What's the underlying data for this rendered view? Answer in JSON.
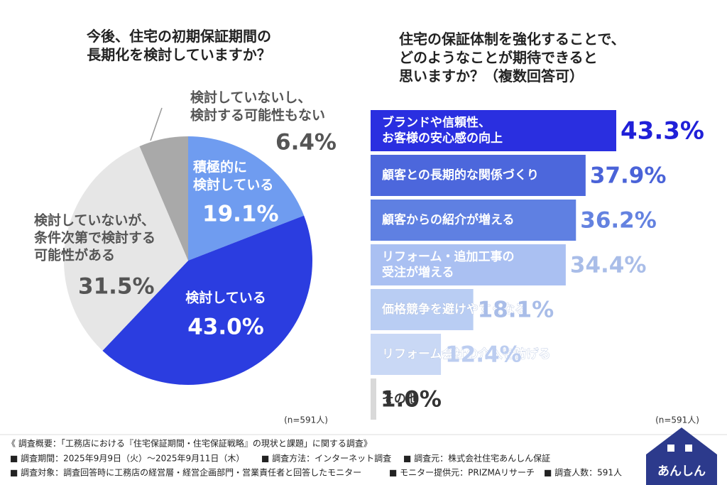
{
  "chart_data": [
    {
      "type": "pie",
      "title": "今後、住宅の初期保証期間の\n長期化を検討していますか？",
      "categories": [
        "積極的に\n検討している",
        "検討している",
        "検討していないが、\n条件次第で検討する\n可能性がある",
        "検討していないし、\n検討する可能性もない"
      ],
      "values": [
        19.1,
        43.0,
        31.5,
        6.4
      ],
      "value_labels": [
        "19.1%",
        "43.0%",
        "31.5%",
        "6.4%"
      ],
      "colors": [
        "#6f9cf0",
        "#2b3de0",
        "#e6e6e6",
        "#a9a9a9"
      ],
      "note": "(n=591人)"
    },
    {
      "type": "barh",
      "title": "住宅の保証体制を強化することで、\nどのようなことが期待できると\n思いますか？（複数回答可）",
      "categories": [
        "ブランドや信頼性、\nお客様の安心感の向上",
        "顧客との長期的な関係づくり",
        "顧客からの紹介が増える",
        "リフォーム・追加工事の\n受注が増える",
        "価格競争を避けやすくなる",
        "リフォーム会社の介入を防げる",
        "その他"
      ],
      "values": [
        43.3,
        37.9,
        36.2,
        34.4,
        18.1,
        12.4,
        1.0
      ],
      "value_labels": [
        "43.3%",
        "37.9%",
        "36.2%",
        "34.4%",
        "18.1%",
        "12.4%",
        "1.0%"
      ],
      "colors": [
        "#2a2fe0",
        "#4c67dc",
        "#5f80e2",
        "#aac0f2",
        "#b9cdf3",
        "#c9d8f5",
        "#d9d9d9"
      ],
      "note": "(n=591人)"
    }
  ],
  "footer": {
    "heading": "《 調査概要：「工務店における『住宅保証期間・住宅保証戦略』の現状と課題」に関する調査》",
    "rows": [
      [
        "■ 調査期間：2025年9月9日（火）～2025年9月11日（木）",
        "■ 調査方法：インターネット調査",
        "■ 調査元：株式会社住宅あんしん保証"
      ],
      [
        "■ 調査対象：調査回答時に工務店の経営層・経営企画部門・営業責任者と回答したモニター",
        "■ モニター提供元：PRIZMAリサーチ",
        "■ 調査人数：591人"
      ]
    ]
  },
  "logo": "あんしん"
}
